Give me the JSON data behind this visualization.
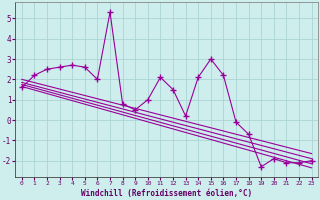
{
  "x": [
    0,
    1,
    2,
    3,
    4,
    5,
    6,
    7,
    8,
    9,
    10,
    11,
    12,
    13,
    14,
    15,
    16,
    17,
    18,
    19,
    20,
    21,
    22,
    23
  ],
  "main_y": [
    1.6,
    2.2,
    2.5,
    2.6,
    2.7,
    2.6,
    2.0,
    5.3,
    0.8,
    0.5,
    1.0,
    2.1,
    1.5,
    0.2,
    2.1,
    3.0,
    2.2,
    -0.1,
    -0.7,
    -2.3,
    -1.9,
    -2.1,
    -2.1,
    -2.0
  ],
  "reg_lines": [
    [
      1.65,
      -2.35
    ],
    [
      1.75,
      -2.15
    ],
    [
      1.85,
      -1.9
    ],
    [
      2.0,
      -1.65
    ]
  ],
  "xlim": [
    -0.5,
    23.5
  ],
  "ylim": [
    -2.8,
    5.8
  ],
  "yticks": [
    -2,
    -1,
    0,
    1,
    2,
    3,
    4,
    5
  ],
  "xticks": [
    0,
    1,
    2,
    3,
    4,
    5,
    6,
    7,
    8,
    9,
    10,
    11,
    12,
    13,
    14,
    15,
    16,
    17,
    18,
    19,
    20,
    21,
    22,
    23
  ],
  "xlabel": "Windchill (Refroidissement éolien,°C)",
  "bg_color": "#ceeeed",
  "grid_color": "#aad4d3",
  "line_color": "#990099",
  "marker": "+"
}
